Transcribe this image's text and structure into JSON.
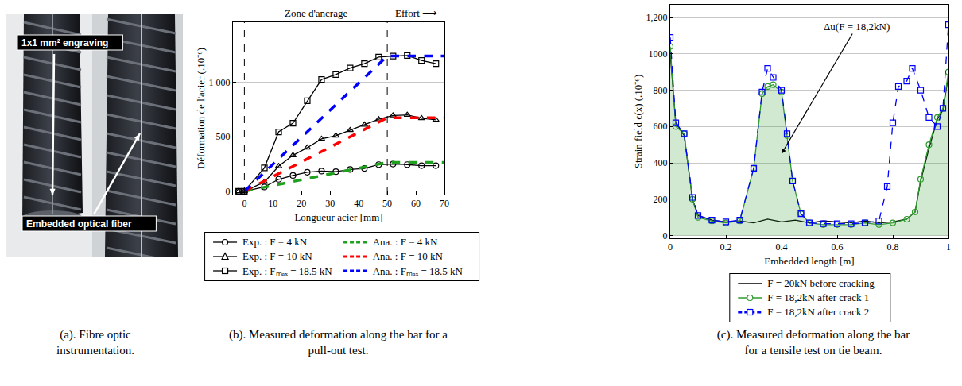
{
  "photo": {
    "labels": [
      "1x1 mm² engraving",
      "Embedded optical fiber"
    ],
    "caption": "(a). Fibre optic instrumentation."
  },
  "chart_data": [
    {
      "type": "line",
      "caption": "(b). Measured deformation along the bar for a pull-out test.",
      "x_label": "Longueur acier [mm]",
      "y_label": "Déformation de l'acier (.10⁻⁶)",
      "annotations": [
        {
          "text": "Zone d'ancrage",
          "x": 25
        },
        {
          "text": "Effort ⟶",
          "x": 60
        }
      ],
      "vlines": [
        0,
        50
      ],
      "xlim": [
        -4,
        70
      ],
      "xticks": [
        0,
        10,
        20,
        30,
        40,
        50,
        60,
        70
      ],
      "ylim": [
        -30,
        1550
      ],
      "yticks": [
        0,
        500,
        {
          "value": 1000,
          "label": "1 000"
        }
      ],
      "grid": true,
      "legend": "below",
      "series": [
        {
          "name": "Exp. : F = 4 kN",
          "color": "#000000",
          "marker": "circle",
          "line_style": "solid",
          "x": [
            -2,
            0,
            7,
            12,
            17,
            22,
            27,
            32,
            37,
            42,
            47,
            52,
            57,
            62,
            67
          ],
          "values": [
            0,
            0,
            40,
            110,
            145,
            175,
            185,
            180,
            200,
            210,
            245,
            250,
            245,
            235,
            235
          ]
        },
        {
          "name": "Ana. : F = 4 kN",
          "color": "#1fa01f",
          "marker": "none",
          "line_style": "dash",
          "x": [
            0,
            50,
            70
          ],
          "values": [
            0,
            265,
            265
          ]
        },
        {
          "name": "Exp. : F = 10 kN",
          "color": "#000000",
          "marker": "triangle-up",
          "line_style": "solid",
          "x": [
            -2,
            0,
            7,
            12,
            17,
            22,
            27,
            32,
            37,
            42,
            47,
            52,
            57,
            62,
            67
          ],
          "values": [
            0,
            0,
            85,
            230,
            330,
            400,
            480,
            510,
            560,
            610,
            660,
            695,
            700,
            670,
            655
          ]
        },
        {
          "name": "Ana. : F = 10 kN",
          "color": "#ff0000",
          "marker": "none",
          "line_style": "dash",
          "x": [
            0,
            50,
            70
          ],
          "values": [
            0,
            675,
            675
          ]
        },
        {
          "name": "Exp. : Fₘₐₓ = 18.5 kN",
          "color": "#000000",
          "marker": "square",
          "line_style": "solid",
          "x": [
            -2,
            0,
            7,
            12,
            17,
            22,
            27,
            32,
            37,
            42,
            47,
            52,
            57,
            62,
            67
          ],
          "values": [
            0,
            0,
            215,
            545,
            625,
            830,
            1025,
            1070,
            1130,
            1170,
            1230,
            1240,
            1245,
            1200,
            1170
          ]
        },
        {
          "name": "Ana. : Fₘₐₓ = 18.5 kN",
          "color": "#0000ff",
          "marker": "none",
          "line_style": "dash",
          "x": [
            0,
            50,
            70
          ],
          "values": [
            0,
            1240,
            1240
          ]
        }
      ]
    },
    {
      "type": "line",
      "caption": "(c). Measured deformation along the bar for a tensile test on tie beam.",
      "x_label": "Embedded length [m]",
      "y_label": "Strain field ϵ(x) (.10⁻⁶)",
      "annotations": [
        {
          "text": "Δu(F = 18,2kN)",
          "x": 0.67,
          "y": 1150,
          "arrow_x": 0.4,
          "arrow_y": 450
        }
      ],
      "xlim": [
        0,
        1
      ],
      "xticks": [
        0,
        0.2,
        0.4,
        0.6,
        0.8,
        1
      ],
      "ylim": [
        -15,
        1270
      ],
      "yticks": [
        0,
        200,
        400,
        600,
        800,
        1000,
        {
          "value": 1200,
          "label": "1,200"
        }
      ],
      "grid": true,
      "legend": "below",
      "series": [
        {
          "name": "F = 20kN before cracking",
          "color": "#000000",
          "marker": "none",
          "line_style": "solid",
          "x": [
            0,
            0.02,
            0.05,
            0.08,
            0.1,
            0.15,
            0.2,
            0.25,
            0.3,
            0.35,
            0.4,
            0.45,
            0.5,
            0.55,
            0.6,
            0.65,
            0.7,
            0.75,
            0.8,
            0.85,
            0.88,
            0.9,
            0.93,
            0.96,
            0.98,
            1
          ],
          "values": [
            1000,
            620,
            550,
            200,
            110,
            85,
            75,
            80,
            70,
            90,
            75,
            85,
            70,
            80,
            75,
            70,
            80,
            70,
            75,
            90,
            130,
            300,
            480,
            640,
            690,
            880
          ]
        },
        {
          "name": "F = 18,2kN after crack 1",
          "color": "#2e9a2e",
          "marker": "circle",
          "line_style": "solid",
          "type": "area",
          "x": [
            0,
            0.02,
            0.05,
            0.08,
            0.1,
            0.15,
            0.2,
            0.25,
            0.3,
            0.33,
            0.35,
            0.37,
            0.4,
            0.42,
            0.44,
            0.47,
            0.5,
            0.55,
            0.6,
            0.65,
            0.7,
            0.75,
            0.8,
            0.85,
            0.88,
            0.9,
            0.93,
            0.96,
            0.98,
            1
          ],
          "values": [
            1040,
            600,
            560,
            200,
            100,
            80,
            70,
            80,
            370,
            780,
            820,
            830,
            790,
            550,
            300,
            120,
            70,
            60,
            60,
            60,
            70,
            60,
            70,
            90,
            130,
            310,
            500,
            650,
            700,
            900
          ]
        },
        {
          "name": "F = 18,2kN after crack 2",
          "color": "#0000ff",
          "marker": "square",
          "line_style": "dash",
          "x": [
            0,
            0.02,
            0.05,
            0.08,
            0.1,
            0.15,
            0.2,
            0.25,
            0.3,
            0.33,
            0.35,
            0.37,
            0.4,
            0.42,
            0.44,
            0.47,
            0.5,
            0.55,
            0.6,
            0.65,
            0.7,
            0.75,
            0.78,
            0.8,
            0.82,
            0.85,
            0.87,
            0.9,
            0.93,
            0.96,
            0.98,
            1
          ],
          "values": [
            1090,
            620,
            560,
            210,
            110,
            85,
            75,
            85,
            370,
            790,
            920,
            870,
            800,
            560,
            300,
            120,
            70,
            65,
            65,
            65,
            70,
            80,
            270,
            620,
            820,
            850,
            920,
            800,
            650,
            600,
            700,
            1160
          ]
        }
      ]
    }
  ]
}
